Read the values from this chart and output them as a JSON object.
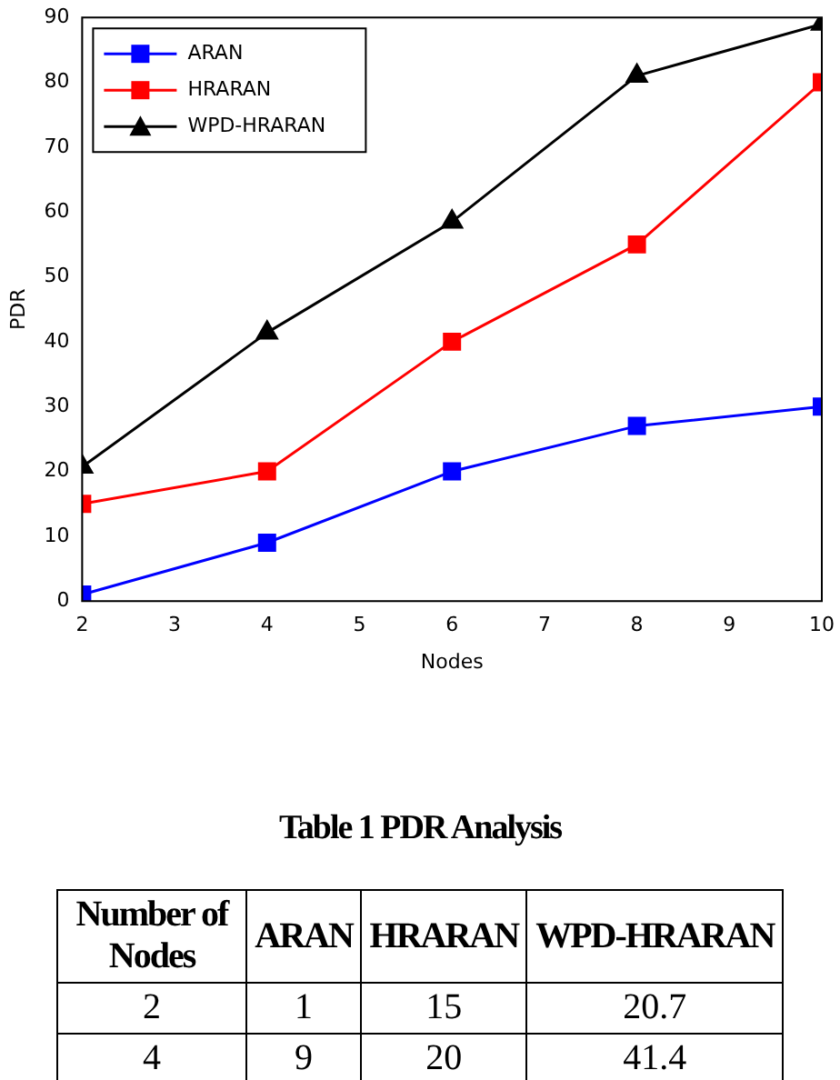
{
  "chart_data": [
    {
      "type": "line",
      "xlabel": "Nodes",
      "ylabel": "PDR",
      "x": [
        2,
        4,
        6,
        8,
        10
      ],
      "xlim": [
        2,
        10
      ],
      "xticks": [
        2,
        3,
        4,
        5,
        6,
        7,
        8,
        9,
        10
      ],
      "ylim": [
        0,
        90
      ],
      "yticks": [
        0,
        10,
        20,
        30,
        40,
        50,
        60,
        70,
        80,
        90
      ],
      "grid": false,
      "legend": "top left",
      "line_style": "solid",
      "series": [
        {
          "name": "ARAN",
          "color": "#0000ff",
          "marker": "square",
          "values": [
            1,
            9,
            20,
            27,
            30
          ]
        },
        {
          "name": "HRARAN",
          "color": "#ff0000",
          "marker": "square",
          "values": [
            15,
            20,
            40,
            55,
            80
          ]
        },
        {
          "name": "WPD-HRARAN",
          "color": "#000000",
          "marker": "triangle",
          "values": [
            20.7,
            41.4,
            58.5,
            81,
            89
          ]
        }
      ]
    },
    {
      "type": "other",
      "title": "Table 1 PDR Analysis",
      "annotations": [
        "Number of Nodes",
        "ARAN",
        "HRARAN",
        "WPD-HRARAN",
        "2",
        "1",
        "15",
        "20.7",
        "4",
        "9",
        "20",
        "41.4"
      ]
    }
  ]
}
